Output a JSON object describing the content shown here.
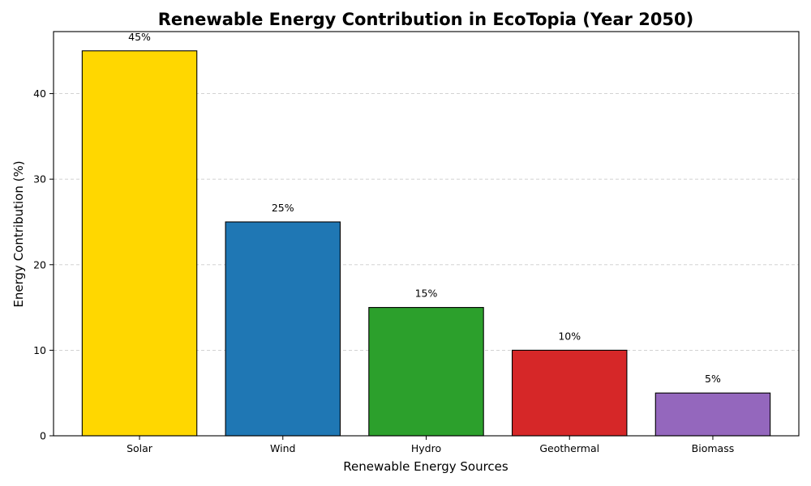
{
  "chart_data": {
    "type": "bar",
    "title": "Renewable Energy Contribution in EcoTopia (Year 2050)",
    "xlabel": "Renewable Energy Sources",
    "ylabel": "Energy Contribution (%)",
    "categories": [
      "Solar",
      "Wind",
      "Hydro",
      "Geothermal",
      "Biomass"
    ],
    "values": [
      45,
      25,
      15,
      10,
      5
    ],
    "data_labels": [
      "45%",
      "25%",
      "15%",
      "10%",
      "5%"
    ],
    "colors": [
      "#ffd700",
      "#1f77b4",
      "#2ca02c",
      "#d62728",
      "#9467bd"
    ],
    "edge_color": "#000000",
    "ylim": [
      0,
      47.25
    ],
    "yticks": [
      0,
      10,
      20,
      30,
      40
    ],
    "grid": true,
    "grid_axis": "y",
    "legend": false
  }
}
